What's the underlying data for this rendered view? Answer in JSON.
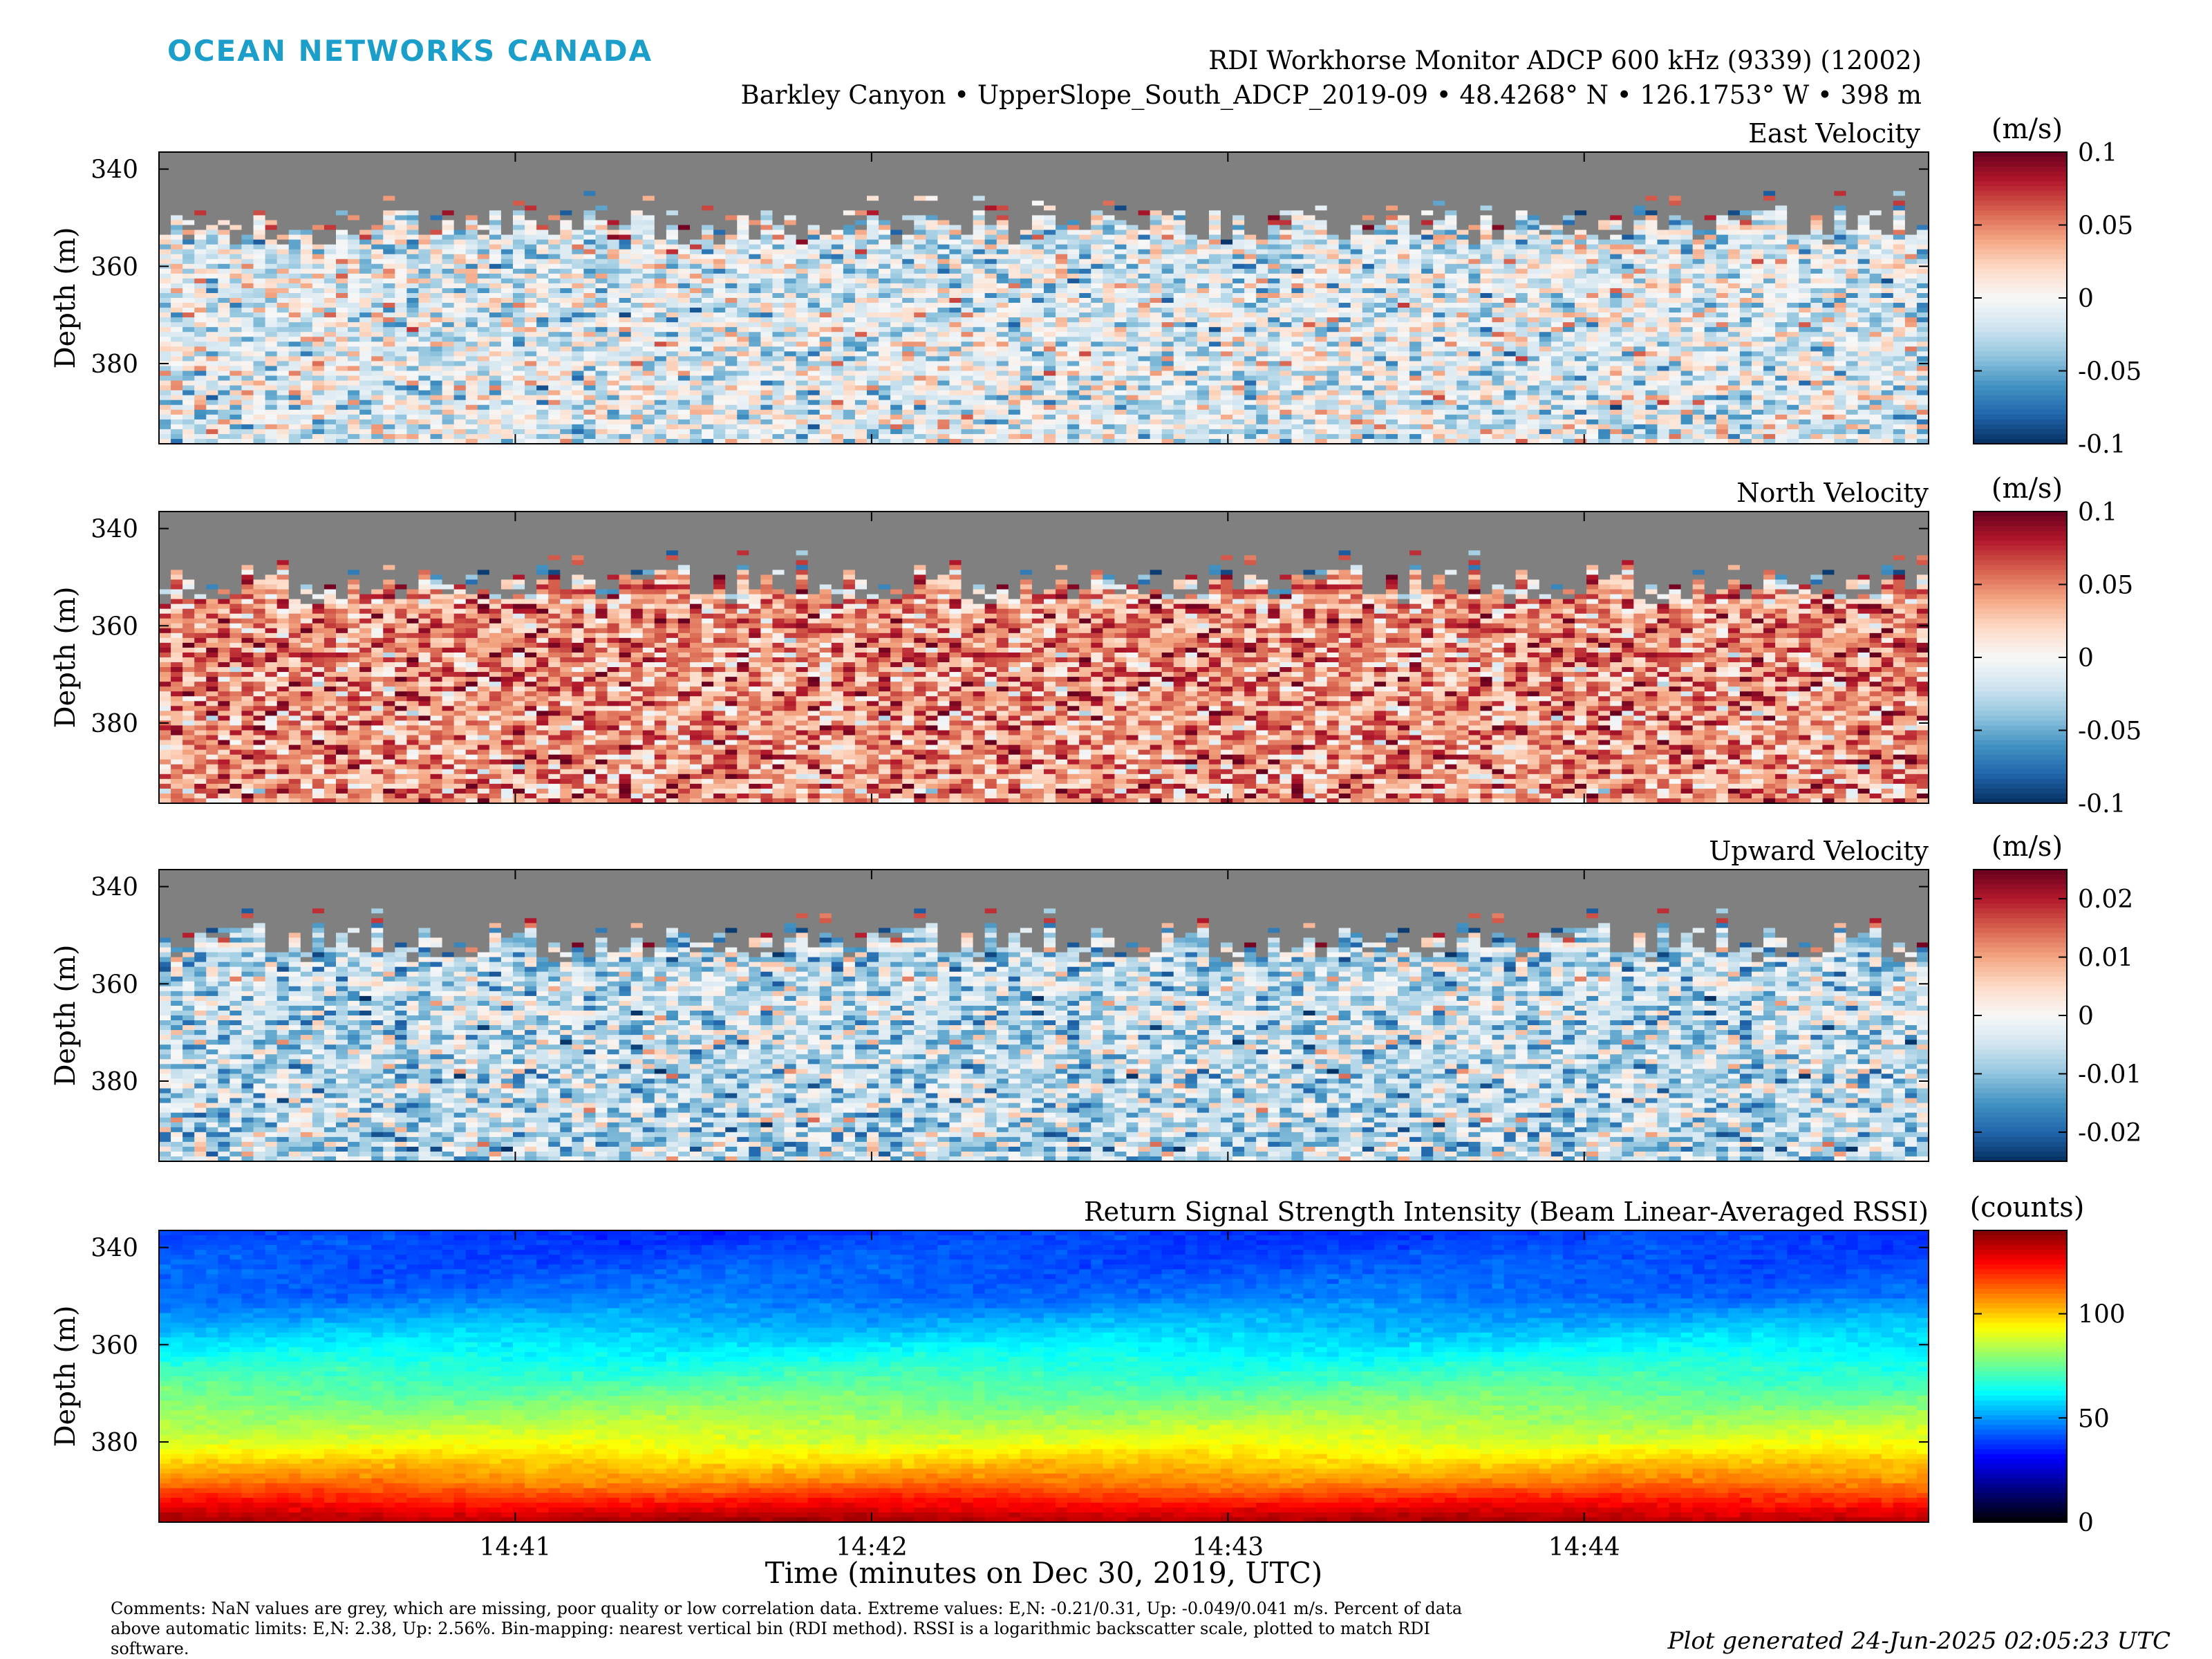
{
  "header": {
    "logo_text": "OCEAN NETWORKS CANADA",
    "logo_color": "#1b9ec9",
    "title_line1": "RDI Workhorse Monitor ADCP 600 kHz (9339) (12002)",
    "title_line2": "Barkley Canyon • UpperSlope_South_ADCP_2019-09 • 48.4268° N • 126.1753° W • 398 m"
  },
  "colors": {
    "nan_grey": "#808080",
    "diverging": [
      "#053061",
      "#2166ac",
      "#4393c3",
      "#92c5de",
      "#d1e5f0",
      "#f7f7f7",
      "#fddbc7",
      "#f4a582",
      "#d6604d",
      "#b2182b",
      "#67001f"
    ],
    "jet": [
      "#000000",
      "#00007f",
      "#0000ff",
      "#007fff",
      "#00ffff",
      "#7fff7f",
      "#ffff00",
      "#ff7f00",
      "#ff0000",
      "#7f0000"
    ]
  },
  "chart_data": [
    {
      "type": "heatmap",
      "title": "East Velocity",
      "ylabel": "Depth (m)",
      "yticks": [
        "340",
        "360",
        "380"
      ],
      "ytick_values": [
        340,
        360,
        380
      ],
      "ylim": [
        396.5,
        336.5
      ],
      "xlim": [
        "14:40:00",
        "14:44:58"
      ],
      "nan_above_depth": 352,
      "colorbar": {
        "label": "(m/s)",
        "ticks": [
          "0.1",
          "0.05",
          "0",
          "-0.05",
          "-0.1"
        ],
        "tick_values": [
          0.1,
          0.05,
          0,
          -0.05,
          -0.1
        ],
        "range": [
          -0.1,
          0.1
        ],
        "colormap": "diverging"
      },
      "mean_value": -0.01
    },
    {
      "type": "heatmap",
      "title": "North Velocity",
      "ylabel": "Depth (m)",
      "yticks": [
        "340",
        "360",
        "380"
      ],
      "ytick_values": [
        340,
        360,
        380
      ],
      "ylim": [
        396.5,
        336.5
      ],
      "xlim": [
        "14:40:00",
        "14:44:58"
      ],
      "nan_above_depth": 352,
      "colorbar": {
        "label": "(m/s)",
        "ticks": [
          "0.1",
          "0.05",
          "0",
          "-0.05",
          "-0.1"
        ],
        "tick_values": [
          0.1,
          0.05,
          0,
          -0.05,
          -0.1
        ],
        "range": [
          -0.1,
          0.1
        ],
        "colormap": "diverging"
      },
      "mean_value": 0.045
    },
    {
      "type": "heatmap",
      "title": "Upward Velocity",
      "ylabel": "Depth (m)",
      "yticks": [
        "340",
        "360",
        "380"
      ],
      "ytick_values": [
        340,
        360,
        380
      ],
      "ylim": [
        396.5,
        336.5
      ],
      "xlim": [
        "14:40:00",
        "14:44:58"
      ],
      "nan_above_depth": 352,
      "colorbar": {
        "label": "(m/s)",
        "ticks": [
          "0.02",
          "0.01",
          "0",
          "-0.01",
          "-0.02"
        ],
        "tick_values": [
          0.02,
          0.01,
          0,
          -0.01,
          -0.02
        ],
        "range": [
          -0.025,
          0.025
        ],
        "colormap": "diverging"
      },
      "mean_value": -0.006
    },
    {
      "type": "heatmap",
      "title": "Return Signal Strength Intensity (Beam Linear-Averaged RSSI)",
      "ylabel": "Depth (m)",
      "yticks": [
        "340",
        "360",
        "380"
      ],
      "ytick_values": [
        340,
        360,
        380
      ],
      "ylim": [
        396.5,
        336.5
      ],
      "xlim": [
        "14:40:00",
        "14:44:58"
      ],
      "nan_above_depth": null,
      "colorbar": {
        "label": "(counts)",
        "ticks": [
          "100",
          "50",
          "0"
        ],
        "tick_values": [
          100,
          50,
          0
        ],
        "range": [
          0,
          140
        ],
        "colormap": "jet"
      },
      "profile": [
        [
          337,
          38
        ],
        [
          350,
          45
        ],
        [
          360,
          60
        ],
        [
          370,
          75
        ],
        [
          380,
          90
        ],
        [
          388,
          108
        ],
        [
          394,
          128
        ],
        [
          396.5,
          135
        ]
      ]
    }
  ],
  "xaxis": {
    "label": "Time (minutes on Dec 30, 2019, UTC)",
    "ticks": [
      "14:41",
      "14:42",
      "14:43",
      "14:44"
    ],
    "tick_values": [
      "14:41:00",
      "14:42:00",
      "14:43:00",
      "14:44:00"
    ]
  },
  "footer": {
    "comments_lines": [
      "Comments: NaN values are grey, which are missing, poor quality or low correlation data. Extreme values: E,N: -0.21/0.31, Up: -0.049/0.041 m/s. Percent of data",
      "above automatic limits: E,N: 2.38, Up: 2.56%. Bin-mapping: nearest vertical bin (RDI method). RSSI is a logarithmic backscatter scale, plotted to match RDI",
      "software."
    ],
    "generated": "Plot generated 24-Jun-2025 02:05:23 UTC"
  }
}
